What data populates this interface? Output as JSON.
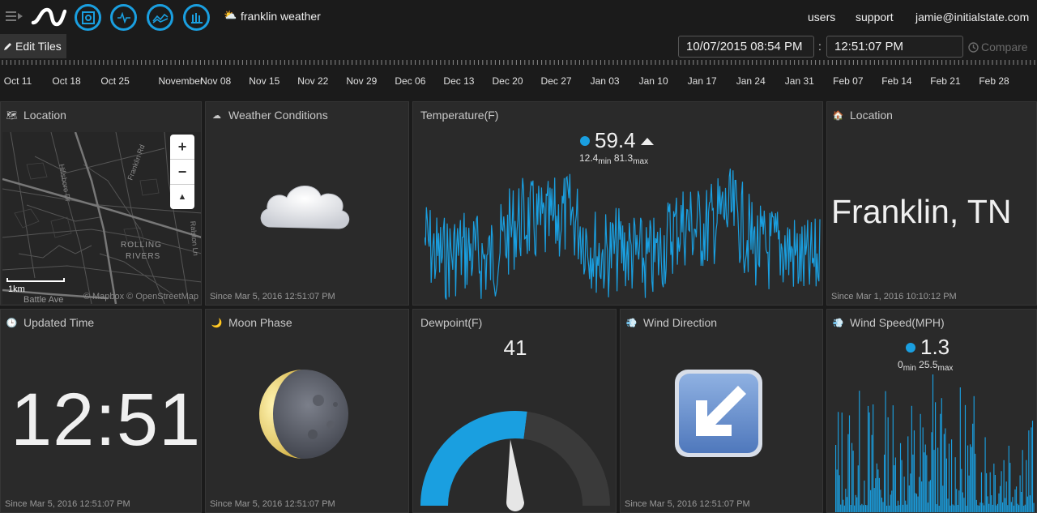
{
  "header": {
    "bucket_name": "franklin weather",
    "nav": [
      "users",
      "support",
      "jamie@initialstate.com"
    ],
    "icons": [
      "menu-icon",
      "initialstate-logo-icon",
      "tiles-view-icon",
      "waves-view-icon",
      "lines-view-icon",
      "grid-view-icon",
      "sun-cloud-icon"
    ]
  },
  "toolbar": {
    "edit_tiles_label": "Edit Tiles",
    "start_datetime": "10/07/2015 08:54 PM",
    "separator": ":",
    "end_time": "12:51:07 PM",
    "compare_label": "Compare"
  },
  "timeline": {
    "labels": [
      "Oct 11",
      "Oct 18",
      "Oct 25",
      "November",
      "Nov 08",
      "Nov 15",
      "Nov 22",
      "Nov 29",
      "Dec 06",
      "Dec 13",
      "Dec 20",
      "Dec 27",
      "Jan 03",
      "Jan 10",
      "Jan 17",
      "Jan 24",
      "Jan 31",
      "Feb 07",
      "Feb 14",
      "Feb 21",
      "Feb 28"
    ]
  },
  "tiles": {
    "location_map": {
      "title": "Location",
      "street_labels": [
        "Hillsboro Dr",
        "Franklin Rd",
        "Ralston Ln",
        "ROLLING",
        "RIVERS",
        "Battle Ave"
      ],
      "scale_label": "1km",
      "attribution": "© Mapbox © OpenStreetMap",
      "zoom_in": "+",
      "zoom_out": "−",
      "compass": "▲"
    },
    "weather_conditions": {
      "title": "Weather Conditions",
      "icon": "cloud-icon",
      "since": "Since Mar 5, 2016 12:51:07 PM"
    },
    "temperature": {
      "title": "Temperature(F)",
      "value": "59.4",
      "trend": "up",
      "min": "12.4",
      "max": "81.3",
      "min_label": "min",
      "max_label": "max",
      "line_color": "#1a9fe0"
    },
    "location_text": {
      "title": "Location",
      "value": "Franklin, TN",
      "since": "Since Mar 1, 2016 10:10:12 PM"
    },
    "updated_time": {
      "title": "Updated Time",
      "value": "12:51",
      "since": "Since Mar 5, 2016 12:51:07 PM"
    },
    "moon_phase": {
      "title": "Moon Phase",
      "icon": "waning-crescent-moon-icon",
      "since": "Since Mar 5, 2016 12:51:07 PM"
    },
    "dewpoint": {
      "title": "Dewpoint(F)",
      "value": "41",
      "gauge_fraction": 0.54,
      "gauge_color": "#1a9fe0"
    },
    "wind_direction": {
      "title": "Wind Direction",
      "icon": "southwest-arrow-icon",
      "since": "Since Mar 5, 2016 12:51:07 PM"
    },
    "wind_speed": {
      "title": "Wind Speed(MPH)",
      "value": "1.3",
      "min": "0",
      "max": "25.5",
      "min_label": "min",
      "max_label": "max",
      "bar_color": "#1a9fe0"
    }
  },
  "colors": {
    "accent": "#1a9fe0",
    "tile_bg": "#2a2a2a",
    "page_bg": "#1b1b1b"
  }
}
